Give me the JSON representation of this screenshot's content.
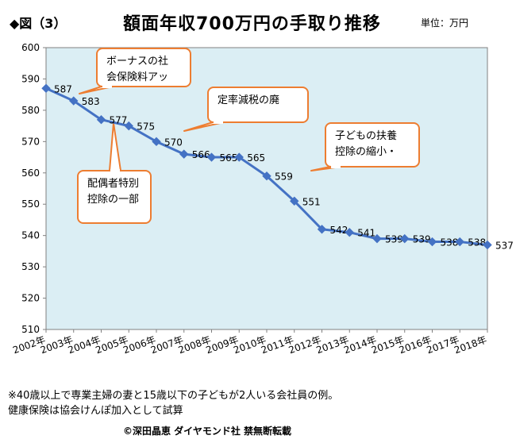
{
  "header": {
    "fig_label": "◆図（3）",
    "title": "額面年収700万円の手取り推移",
    "unit": "単位：万円"
  },
  "chart_data": {
    "type": "line",
    "title": "額面年収700万円の手取り推移",
    "xlabel": "",
    "ylabel": "",
    "ylim": [
      510,
      600
    ],
    "yticks": [
      510,
      520,
      530,
      540,
      550,
      560,
      570,
      580,
      590,
      600
    ],
    "grid": false,
    "categories": [
      "2002年",
      "2003年",
      "2004年",
      "2005年",
      "2006年",
      "2007年",
      "2008年",
      "2009年",
      "2010年",
      "2011年",
      "2012年",
      "2013年",
      "2014年",
      "2015年",
      "2016年",
      "2017年",
      "2018年"
    ],
    "series": [
      {
        "values": [
          587,
          583,
          577,
          575,
          570,
          566,
          565,
          565,
          559,
          551,
          542,
          541,
          539,
          539,
          538,
          538,
          537
        ],
        "color": "#4472c4"
      }
    ],
    "plot_background": "#dbeef4",
    "annotations": [
      {
        "text_lines": [
          "ボーナスの社",
          "会保険料アッ"
        ],
        "points_to": "2003年"
      },
      {
        "text_lines": [
          "定率減税の廃"
        ],
        "points_to": "2007年"
      },
      {
        "text_lines": [
          "配偶者特別",
          "控除の一部"
        ],
        "points_to": "2005年"
      },
      {
        "text_lines": [
          "子どもの扶養",
          "控除の縮小・"
        ],
        "points_to": "2011年"
      }
    ],
    "annotation_border": "#ed7d31"
  },
  "notes": {
    "line1": "※40歳以上で専業主婦の妻と15歳以下の子どもが2人いる会社員の例。",
    "line2": "健康保険は協会けんぽ加入として試算"
  },
  "footer": {
    "copyright": "©深田晶恵 ダイヤモンド社 禁無断転載"
  }
}
